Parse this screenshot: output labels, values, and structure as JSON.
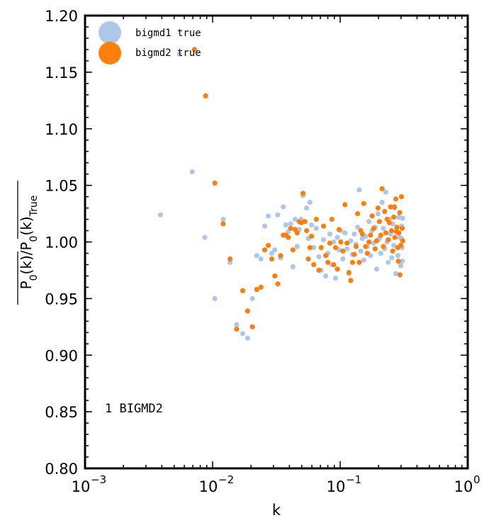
{
  "chart_data": {
    "type": "scatter",
    "xscale": "log",
    "xlim": [
      0.001,
      1
    ],
    "ylim": [
      0.8,
      1.2
    ],
    "xlabel": "k",
    "ylabel": "P0(k)/P0(k)True",
    "annotation": "1 BIGMD2",
    "legend_position": "top-left",
    "grid": false,
    "x_ticks": [
      {
        "value": 0.001,
        "base": "10",
        "exp": "−3"
      },
      {
        "value": 0.01,
        "base": "10",
        "exp": "−2"
      },
      {
        "value": 0.1,
        "base": "10",
        "exp": "−1"
      },
      {
        "value": 1,
        "base": "10",
        "exp": "0"
      }
    ],
    "y_ticks": [
      {
        "value": 0.8,
        "label": "0.80"
      },
      {
        "value": 0.85,
        "label": "0.85"
      },
      {
        "value": 0.9,
        "label": "0.90"
      },
      {
        "value": 0.95,
        "label": "0.95"
      },
      {
        "value": 1.0,
        "label": "1.00"
      },
      {
        "value": 1.05,
        "label": "1.05"
      },
      {
        "value": 1.1,
        "label": "1.10"
      },
      {
        "value": 1.15,
        "label": "1.15"
      },
      {
        "value": 1.2,
        "label": "1.20"
      }
    ],
    "series": [
      {
        "name": "bigmd1 true",
        "color": "#aec7e8",
        "points": [
          [
            0.0039,
            1.024
          ],
          [
            0.0055,
            1.166
          ],
          [
            0.0069,
            1.062
          ],
          [
            0.0087,
            1.004
          ],
          [
            0.0104,
            0.95
          ],
          [
            0.0121,
            1.02
          ],
          [
            0.0137,
            0.982
          ],
          [
            0.0154,
            0.927
          ],
          [
            0.0172,
            0.919
          ],
          [
            0.0188,
            0.915
          ],
          [
            0.0205,
            0.95
          ],
          [
            0.0222,
            0.988
          ],
          [
            0.0239,
            0.985
          ],
          [
            0.0256,
            1.014
          ],
          [
            0.0273,
            1.023
          ],
          [
            0.0291,
            0.99
          ],
          [
            0.0307,
            0.993
          ],
          [
            0.0324,
            1.024
          ],
          [
            0.0341,
            0.986
          ],
          [
            0.0358,
            1.031
          ],
          [
            0.0375,
            1.015
          ],
          [
            0.0392,
            1.009
          ],
          [
            0.0409,
            1.016
          ],
          [
            0.0426,
            0.978
          ],
          [
            0.0443,
            1.02
          ],
          [
            0.046,
            0.996
          ],
          [
            0.0477,
            1.011
          ],
          [
            0.0494,
            1.02
          ],
          [
            0.0511,
            1.041
          ],
          [
            0.0528,
            1.018
          ],
          [
            0.0545,
            1.03
          ],
          [
            0.0562,
            1.003
          ],
          [
            0.0579,
            1.035
          ],
          [
            0.0596,
            1.015
          ],
          [
            0.062,
            0.995
          ],
          [
            0.065,
            1.012
          ],
          [
            0.068,
            0.987
          ],
          [
            0.071,
            0.975
          ],
          [
            0.074,
            1.002
          ],
          [
            0.077,
            0.97
          ],
          [
            0.08,
            0.99
          ],
          [
            0.083,
            1.007
          ],
          [
            0.086,
            0.98
          ],
          [
            0.089,
            1.0
          ],
          [
            0.092,
            0.968
          ],
          [
            0.095,
            1.004
          ],
          [
            0.098,
            0.993
          ],
          [
            0.101,
            1.01
          ],
          [
            0.105,
            0.985
          ],
          [
            0.109,
            1.008
          ],
          [
            0.113,
            0.994
          ],
          [
            0.117,
            0.972
          ],
          [
            0.121,
            1.001
          ],
          [
            0.125,
            0.989
          ],
          [
            0.129,
            1.007
          ],
          [
            0.133,
            0.998
          ],
          [
            0.137,
            1.013
          ],
          [
            0.141,
            1.046
          ],
          [
            0.145,
            0.992
          ],
          [
            0.149,
            1.003
          ],
          [
            0.153,
            0.984
          ],
          [
            0.158,
            1.005
          ],
          [
            0.163,
            0.996
          ],
          [
            0.168,
            1.018
          ],
          [
            0.173,
            0.988
          ],
          [
            0.178,
            1.01
          ],
          [
            0.183,
            0.999
          ],
          [
            0.188,
            1.013
          ],
          [
            0.193,
            0.976
          ],
          [
            0.198,
            1.025
          ],
          [
            0.203,
            1.003
          ],
          [
            0.208,
            0.99
          ],
          [
            0.213,
            1.035
          ],
          [
            0.218,
            1.012
          ],
          [
            0.223,
            0.994
          ],
          [
            0.228,
            1.044
          ],
          [
            0.233,
            1.0
          ],
          [
            0.238,
            0.982
          ],
          [
            0.243,
            1.02
          ],
          [
            0.248,
            1.007
          ],
          [
            0.253,
            0.986
          ],
          [
            0.258,
            1.016
          ],
          [
            0.263,
            0.997
          ],
          [
            0.268,
            1.03
          ],
          [
            0.273,
            0.972
          ],
          [
            0.278,
            1.01
          ],
          [
            0.283,
            0.988
          ],
          [
            0.288,
            1.022
          ],
          [
            0.293,
            1.004
          ],
          [
            0.298,
            0.979
          ],
          [
            0.303,
            1.014
          ],
          [
            0.306,
            0.995
          ],
          [
            0.309,
            1.021
          ],
          [
            0.306,
            0.983
          ],
          [
            0.302,
            1.003
          ]
        ]
      },
      {
        "name": "bigmd2 true",
        "color": "#ff7f0e",
        "points": [
          [
            0.0072,
            1.17
          ],
          [
            0.0088,
            1.129
          ],
          [
            0.0104,
            1.052
          ],
          [
            0.0121,
            1.016
          ],
          [
            0.0137,
            0.985
          ],
          [
            0.0154,
            0.923
          ],
          [
            0.0172,
            0.957
          ],
          [
            0.0188,
            0.939
          ],
          [
            0.0205,
            0.925
          ],
          [
            0.0222,
            0.958
          ],
          [
            0.0239,
            0.96
          ],
          [
            0.0256,
            0.993
          ],
          [
            0.0273,
            0.997
          ],
          [
            0.0291,
            0.985
          ],
          [
            0.0307,
            0.97
          ],
          [
            0.0324,
            0.963
          ],
          [
            0.0341,
            0.988
          ],
          [
            0.0358,
            1.006
          ],
          [
            0.0375,
            1.006
          ],
          [
            0.0392,
            1.004
          ],
          [
            0.0409,
            1.012
          ],
          [
            0.0426,
            0.993
          ],
          [
            0.0443,
            1.011
          ],
          [
            0.046,
            1.008
          ],
          [
            0.0477,
            1.018
          ],
          [
            0.0494,
            1.017
          ],
          [
            0.0511,
            1.043
          ],
          [
            0.0528,
            1.018
          ],
          [
            0.0545,
            1.01
          ],
          [
            0.0562,
            0.985
          ],
          [
            0.0579,
            0.995
          ],
          [
            0.0596,
            1.005
          ],
          [
            0.062,
            0.98
          ],
          [
            0.065,
            1.02
          ],
          [
            0.068,
            0.975
          ],
          [
            0.071,
            0.995
          ],
          [
            0.074,
            1.014
          ],
          [
            0.077,
            0.988
          ],
          [
            0.08,
            0.982
          ],
          [
            0.083,
            0.999
          ],
          [
            0.086,
            1.02
          ],
          [
            0.089,
            0.98
          ],
          [
            0.092,
            0.995
          ],
          [
            0.095,
            0.976
          ],
          [
            0.098,
            1.011
          ],
          [
            0.101,
            1.0
          ],
          [
            0.105,
            0.992
          ],
          [
            0.109,
            1.033
          ],
          [
            0.113,
            0.999
          ],
          [
            0.117,
            0.973
          ],
          [
            0.121,
            0.966
          ],
          [
            0.125,
            0.982
          ],
          [
            0.129,
            0.989
          ],
          [
            0.133,
            0.996
          ],
          [
            0.137,
            1.025
          ],
          [
            0.141,
            0.982
          ],
          [
            0.145,
            1.01
          ],
          [
            0.149,
            1.007
          ],
          [
            0.153,
            1.034
          ],
          [
            0.158,
            0.996
          ],
          [
            0.163,
            0.99
          ],
          [
            0.168,
            1.0
          ],
          [
            0.173,
            1.006
          ],
          [
            0.178,
            1.023
          ],
          [
            0.183,
            1.012
          ],
          [
            0.188,
            0.994
          ],
          [
            0.193,
            1.001
          ],
          [
            0.198,
            1.03
          ],
          [
            0.203,
            1.018
          ],
          [
            0.208,
            1.006
          ],
          [
            0.213,
            1.047
          ],
          [
            0.218,
            0.996
          ],
          [
            0.223,
            1.027
          ],
          [
            0.228,
            1.008
          ],
          [
            0.233,
            1.02
          ],
          [
            0.238,
            1.002
          ],
          [
            0.243,
            1.017
          ],
          [
            0.248,
            1.031
          ],
          [
            0.253,
            1.01
          ],
          [
            0.258,
            0.992
          ],
          [
            0.263,
            1.022
          ],
          [
            0.268,
            1.004
          ],
          [
            0.273,
            1.038
          ],
          [
            0.278,
            1.013
          ],
          [
            0.283,
            0.995
          ],
          [
            0.288,
            1.008
          ],
          [
            0.293,
            1.026
          ],
          [
            0.298,
            0.997
          ],
          [
            0.302,
            1.04
          ],
          [
            0.306,
            1.012
          ],
          [
            0.309,
            1.001
          ],
          [
            0.294,
            0.971
          ],
          [
            0.286,
            0.983
          ],
          [
            0.276,
            1.009
          ],
          [
            0.266,
            1.031
          ]
        ]
      }
    ]
  }
}
